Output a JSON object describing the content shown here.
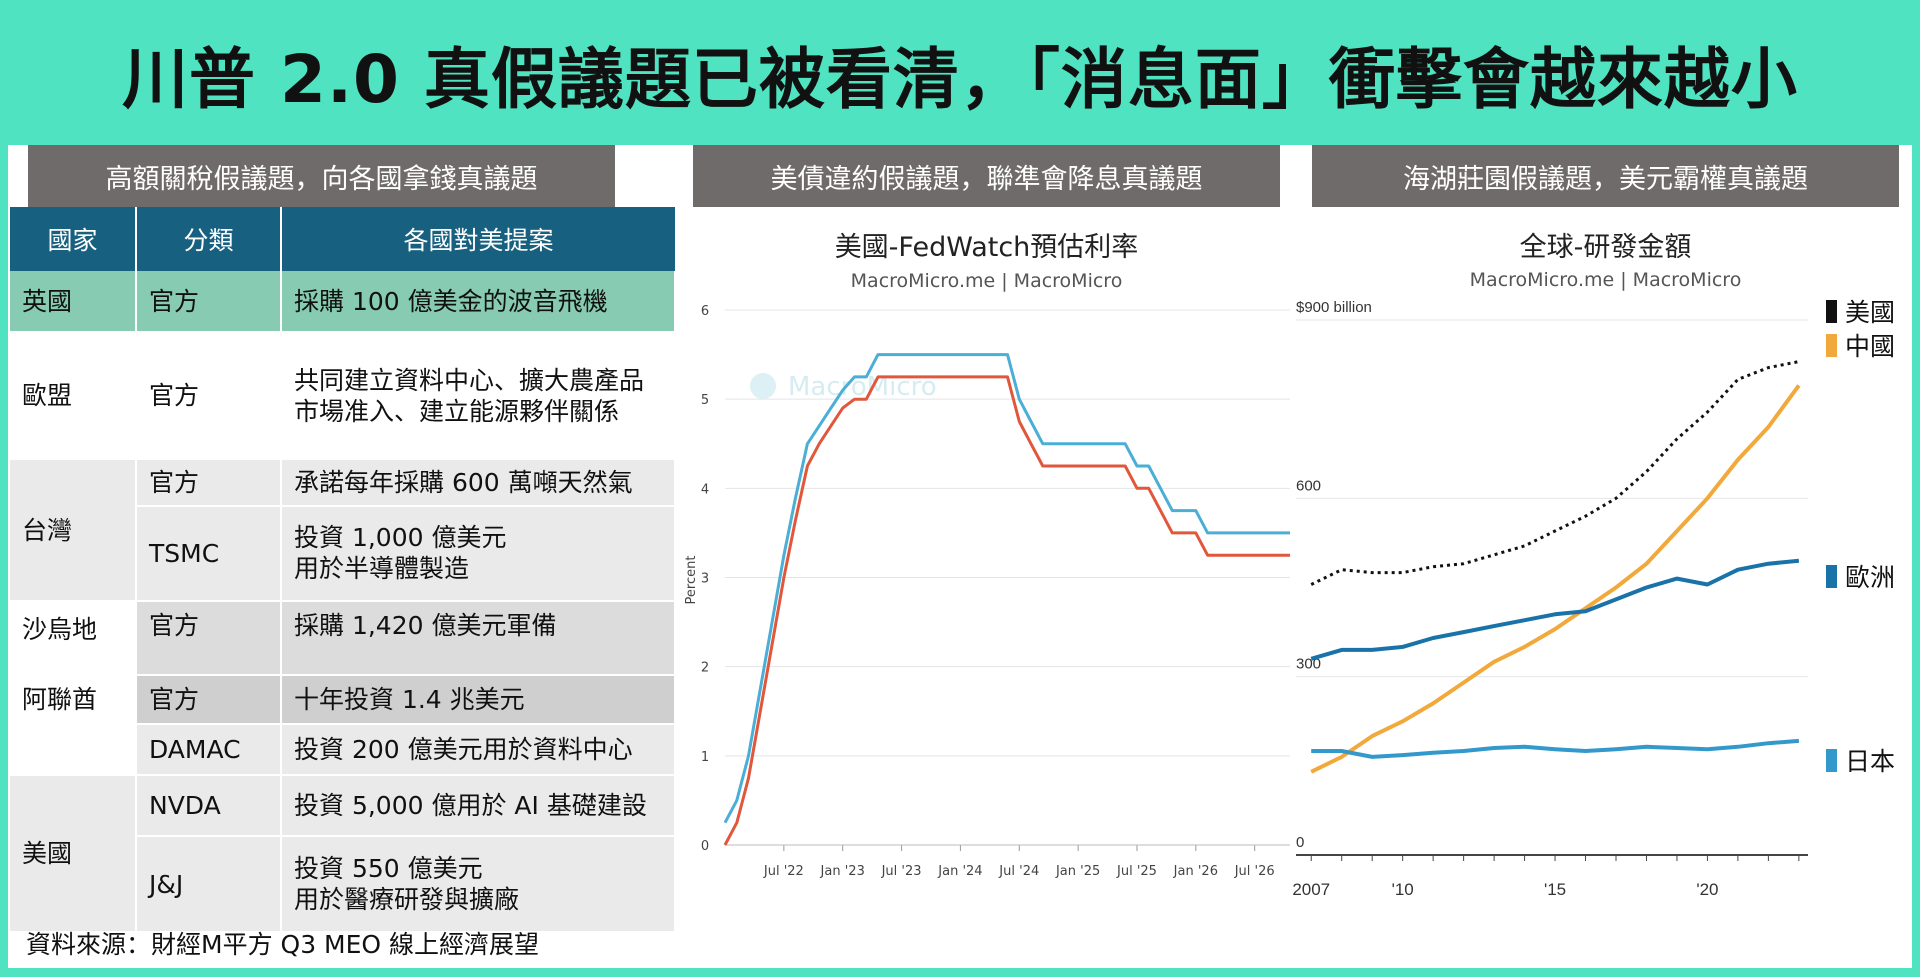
{
  "title": "川普 2.0 真假議題已被看清，「消息面」衝擊會越來越小",
  "panels": [
    {
      "header": "高額關稅假議題，向各國拿錢真議題"
    },
    {
      "header": "美債違約假議題，聯準會降息真議題"
    },
    {
      "header": "海湖莊園假議題，美元霸權真議題"
    }
  ],
  "table": {
    "headers": [
      "國家",
      "分類",
      "各國對美提案"
    ],
    "rows": [
      {
        "country": "英國",
        "category": "官方",
        "proposal": "採購 100 億美金的波音飛機"
      },
      {
        "country": "歐盟",
        "category": "官方",
        "proposal": "共同建立資料中心、擴大農產品市場准入、建立能源夥伴關係"
      },
      {
        "country": "台灣",
        "category": "官方",
        "proposal": "承諾每年採購 600 萬噸天然氣"
      },
      {
        "country": "",
        "category": "TSMC",
        "proposal": "投資 1,000 億美元 用於半導體製造"
      },
      {
        "country": "沙烏地",
        "category": "官方",
        "proposal": "採購 1,420 億美元軍備"
      },
      {
        "country": "阿聯酋",
        "category": "官方",
        "proposal": "十年投資 1.4 兆美元"
      },
      {
        "country": "",
        "category": "DAMAC",
        "proposal": "投資 200 億美元用於資料中心"
      },
      {
        "country": "美國",
        "category": "NVDA",
        "proposal": "投資 5,000 億用於 AI 基礎建設"
      },
      {
        "country": "",
        "category": "J&J",
        "proposal": "投資 550 億美元 用於醫療研發與擴廠"
      }
    ],
    "eu_lines": [
      "共同建立資料中心、擴大農產品",
      "市場准入、建立能源夥伴關係"
    ],
    "tsmc_lines": [
      "投資 1,000 億美元",
      "用於半導體製造"
    ],
    "jj_lines": [
      "投資 550 億美元",
      "用於醫療研發與擴廠"
    ]
  },
  "source": "資料來源：財經M平方 Q3 MEO 線上經濟展望",
  "chart_data": [
    {
      "type": "line",
      "title": "美國-FedWatch預估利率",
      "subtitle": "MacroMicro.me | MacroMicro",
      "watermark": "MacroMicro",
      "ylabel": "Percent",
      "ylim": [
        0,
        6
      ],
      "yticks": [
        "0",
        "1",
        "2",
        "3",
        "4",
        "5",
        "6"
      ],
      "xticks": [
        "Jul '22",
        "Jan '23",
        "Jul '23",
        "Jan '24",
        "Jul '24",
        "Jan '25",
        "Jul '25",
        "Jan '26",
        "Jul '26"
      ],
      "x": [
        2022.0,
        2022.1,
        2022.2,
        2022.3,
        2022.4,
        2022.5,
        2022.6,
        2022.7,
        2022.8,
        2022.9,
        2023.0,
        2023.1,
        2023.2,
        2023.3,
        2023.4,
        2023.5,
        2023.6,
        2023.7,
        2023.8,
        2023.9,
        2024.0,
        2024.1,
        2024.2,
        2024.3,
        2024.4,
        2024.5,
        2024.6,
        2024.7,
        2024.8,
        2024.9,
        2025.0,
        2025.1,
        2025.2,
        2025.3,
        2025.4,
        2025.5,
        2025.6,
        2025.7,
        2025.8,
        2025.9,
        2026.0,
        2026.1,
        2026.2,
        2026.3,
        2026.4,
        2026.5,
        2026.6,
        2026.7,
        2026.8
      ],
      "series": [
        {
          "color": "#4aaed6",
          "values": [
            0.25,
            0.5,
            1.0,
            1.75,
            2.5,
            3.25,
            3.9,
            4.5,
            4.7,
            4.9,
            5.1,
            5.25,
            5.25,
            5.5,
            5.5,
            5.5,
            5.5,
            5.5,
            5.5,
            5.5,
            5.5,
            5.5,
            5.5,
            5.5,
            5.5,
            5.0,
            4.75,
            4.5,
            4.5,
            4.5,
            4.5,
            4.5,
            4.5,
            4.5,
            4.5,
            4.25,
            4.25,
            4.0,
            3.75,
            3.75,
            3.75,
            3.5,
            3.5,
            3.5,
            3.5,
            3.5,
            3.5,
            3.5,
            3.5
          ]
        },
        {
          "color": "#e0573c",
          "values": [
            0.0,
            0.25,
            0.75,
            1.5,
            2.25,
            3.0,
            3.65,
            4.25,
            4.5,
            4.7,
            4.9,
            5.0,
            5.0,
            5.25,
            5.25,
            5.25,
            5.25,
            5.25,
            5.25,
            5.25,
            5.25,
            5.25,
            5.25,
            5.25,
            5.25,
            4.75,
            4.5,
            4.25,
            4.25,
            4.25,
            4.25,
            4.25,
            4.25,
            4.25,
            4.25,
            4.0,
            4.0,
            3.75,
            3.5,
            3.5,
            3.5,
            3.25,
            3.25,
            3.25,
            3.25,
            3.25,
            3.25,
            3.25,
            3.25
          ]
        }
      ]
    },
    {
      "type": "line",
      "title": "全球-研發金額",
      "subtitle": "MacroMicro.me | MacroMicro",
      "ylim": [
        0,
        900
      ],
      "yticks": [
        "0",
        "300",
        "600",
        "$900 billion"
      ],
      "xticks": [
        "2007",
        "'10",
        "'15",
        "'20"
      ],
      "x": [
        2007,
        2008,
        2009,
        2010,
        2011,
        2012,
        2013,
        2014,
        2015,
        2016,
        2017,
        2018,
        2019,
        2020,
        2021,
        2022,
        2023
      ],
      "series": [
        {
          "name": "美國",
          "color": "#111111",
          "dash": "3,4",
          "values": [
            455,
            480,
            475,
            475,
            485,
            490,
            505,
            520,
            545,
            570,
            600,
            645,
            700,
            745,
            800,
            820,
            830
          ]
        },
        {
          "name": "中國",
          "color": "#f2a93b",
          "values": [
            140,
            165,
            200,
            225,
            255,
            290,
            325,
            350,
            380,
            415,
            450,
            490,
            545,
            600,
            665,
            720,
            790
          ]
        },
        {
          "name": "歐洲",
          "color": "#1a73a8",
          "values": [
            330,
            345,
            345,
            350,
            365,
            375,
            385,
            395,
            405,
            410,
            430,
            450,
            465,
            455,
            480,
            490,
            495
          ]
        },
        {
          "name": "日本",
          "color": "#3399cc",
          "values": [
            175,
            175,
            165,
            168,
            172,
            175,
            180,
            182,
            178,
            175,
            178,
            182,
            180,
            178,
            182,
            188,
            192
          ]
        }
      ]
    }
  ]
}
